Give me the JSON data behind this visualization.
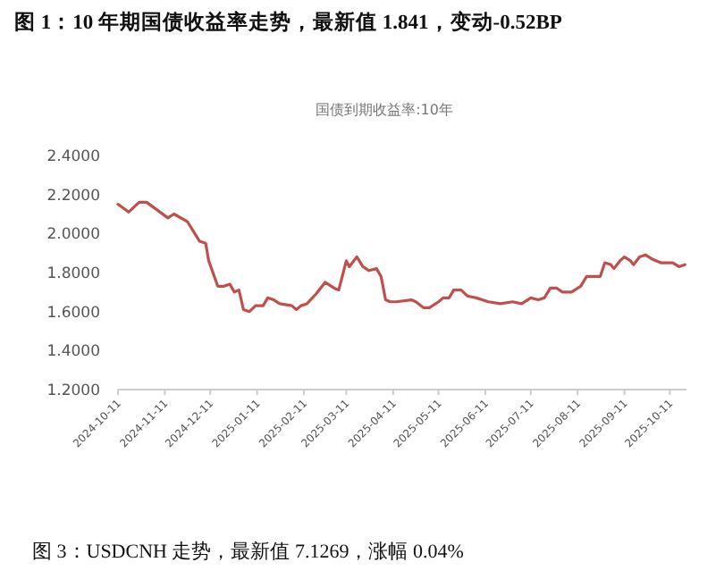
{
  "chart_data": {
    "type": "line",
    "title": "图 1：10 年期国债收益率走势，最新值 1.841，变动-0.52BP",
    "subtitle": "国债到期收益率:10年",
    "annotations": [
      "图 3：USDCNH 走势，最新值 7.1269，涨幅 0.04%"
    ],
    "x": [
      "2024-10-11",
      "2024-10-18",
      "2024-10-25",
      "2024-10-30",
      "2024-11-13",
      "2024-11-17",
      "2024-11-26",
      "2024-12-04",
      "2024-12-08",
      "2024-12-10",
      "2024-12-16",
      "2024-12-20",
      "2024-12-24",
      "2024-12-27",
      "2024-12-30",
      "2025-01-02",
      "2025-01-06",
      "2025-01-10",
      "2025-01-15",
      "2025-01-18",
      "2025-01-22",
      "2025-01-26",
      "2025-02-03",
      "2025-02-06",
      "2025-02-09",
      "2025-02-13",
      "2025-02-19",
      "2025-02-25",
      "2025-03-03",
      "2025-03-06",
      "2025-03-09",
      "2025-03-11",
      "2025-03-13",
      "2025-03-18",
      "2025-03-22",
      "2025-03-26",
      "2025-03-31",
      "2025-04-03",
      "2025-04-06",
      "2025-04-09",
      "2025-04-13",
      "2025-04-23",
      "2025-04-26",
      "2025-05-01",
      "2025-05-05",
      "2025-05-11",
      "2025-05-14",
      "2025-05-18",
      "2025-05-21",
      "2025-05-26",
      "2025-05-30",
      "2025-06-05",
      "2025-06-13",
      "2025-06-21",
      "2025-06-29",
      "2025-07-05",
      "2025-07-11",
      "2025-07-16",
      "2025-07-20",
      "2025-07-24",
      "2025-07-28",
      "2025-08-01",
      "2025-08-07",
      "2025-08-13",
      "2025-08-17",
      "2025-08-23",
      "2025-08-26",
      "2025-08-29",
      "2025-09-02",
      "2025-09-04",
      "2025-09-08",
      "2025-09-11",
      "2025-09-15",
      "2025-09-17",
      "2025-09-21",
      "2025-09-25",
      "2025-09-29",
      "2025-10-05",
      "2025-10-13",
      "2025-10-17",
      "2025-10-21"
    ],
    "series": [
      {
        "color": "#c0504d",
        "values": [
          2.15,
          2.11,
          2.16,
          2.16,
          2.08,
          2.1,
          2.06,
          1.96,
          1.95,
          1.86,
          1.73,
          1.73,
          1.74,
          1.7,
          1.71,
          1.61,
          1.6,
          1.63,
          1.63,
          1.67,
          1.66,
          1.64,
          1.63,
          1.61,
          1.63,
          1.64,
          1.69,
          1.75,
          1.72,
          1.71,
          1.8,
          1.86,
          1.83,
          1.88,
          1.83,
          1.81,
          1.82,
          1.78,
          1.66,
          1.65,
          1.65,
          1.66,
          1.65,
          1.62,
          1.62,
          1.65,
          1.67,
          1.67,
          1.71,
          1.71,
          1.68,
          1.67,
          1.65,
          1.64,
          1.65,
          1.64,
          1.67,
          1.66,
          1.67,
          1.72,
          1.72,
          1.7,
          1.7,
          1.73,
          1.78,
          1.78,
          1.78,
          1.85,
          1.84,
          1.82,
          1.86,
          1.88,
          1.86,
          1.84,
          1.88,
          1.89,
          1.87,
          1.85,
          1.85,
          1.83,
          1.84
        ]
      }
    ],
    "xlim": [
      "2024-10-11",
      "2025-10-22"
    ],
    "xticks": [
      "2024-10-11",
      "2024-11-11",
      "2024-12-11",
      "2025-01-11",
      "2025-02-11",
      "2025-03-11",
      "2025-04-11",
      "2025-05-11",
      "2025-06-11",
      "2025-07-11",
      "2025-08-11",
      "2025-09-11",
      "2025-10-11"
    ],
    "ylim": [
      1.2,
      2.4
    ],
    "yticks": [
      {
        "value": 1.2,
        "label": "1.2000"
      },
      {
        "value": 1.4,
        "label": "1.4000"
      },
      {
        "value": 1.6,
        "label": "1.6000"
      },
      {
        "value": 1.8,
        "label": "1.8000"
      },
      {
        "value": 2.0,
        "label": "2.0000"
      },
      {
        "value": 2.2,
        "label": "2.2000"
      },
      {
        "value": 2.4,
        "label": "2.4000"
      }
    ],
    "line_style": "solid"
  }
}
